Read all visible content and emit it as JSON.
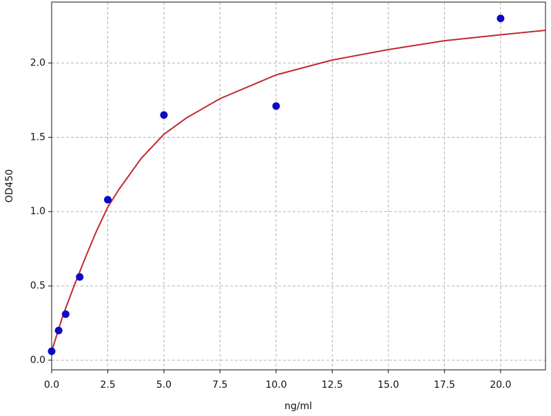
{
  "chart_data": {
    "type": "scatter",
    "x_label": "ng/ml",
    "y_label": "OD450",
    "xlim": [
      0,
      22
    ],
    "ylim": [
      -0.065,
      2.41
    ],
    "xticks": [
      {
        "value": 0,
        "label": "0.0"
      },
      2.5,
      {
        "value": 5,
        "label": "5.0"
      },
      7.5,
      {
        "value": 10,
        "label": "10.0"
      },
      12.5,
      {
        "value": 15,
        "label": "15.0"
      },
      17.5,
      {
        "value": 20,
        "label": "20.0"
      }
    ],
    "yticks": [
      {
        "value": 0,
        "label": "0.0"
      },
      0.5,
      {
        "value": 1,
        "label": "1.0"
      },
      1.5,
      {
        "value": 2,
        "label": "2.0"
      }
    ],
    "grid": true,
    "series": [
      {
        "type": "scatter",
        "color": "#0a0ac8",
        "x": [
          0,
          0.3125,
          0.625,
          1.25,
          2.5,
          5,
          10,
          20
        ],
        "values": [
          0.06,
          0.2,
          0.31,
          0.56,
          1.08,
          1.65,
          1.71,
          2.3
        ]
      },
      {
        "type": "line",
        "color": "#c0282d",
        "x": [
          0,
          0.5,
          1,
          1.5,
          2,
          2.5,
          3,
          4,
          5,
          6,
          7.5,
          10,
          12.5,
          15,
          17.5,
          20,
          22
        ],
        "values": [
          0.06,
          0.3,
          0.5,
          0.69,
          0.87,
          1.03,
          1.15,
          1.36,
          1.52,
          1.63,
          1.76,
          1.92,
          2.02,
          2.09,
          2.15,
          2.19,
          2.22
        ]
      }
    ]
  }
}
